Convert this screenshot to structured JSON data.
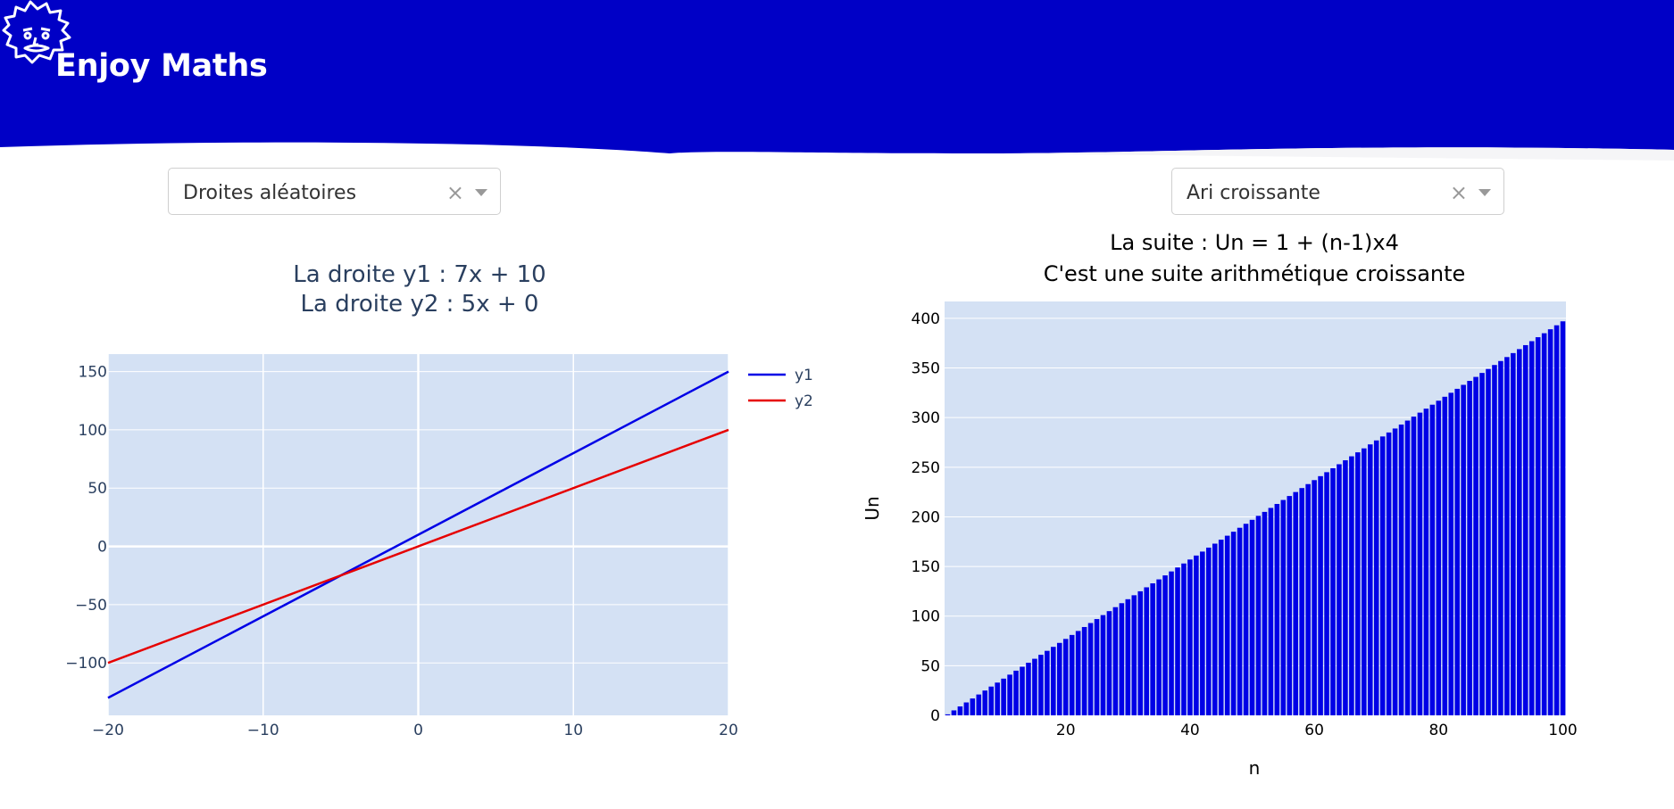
{
  "header": {
    "title": "Enjoy Maths",
    "background": "#0000c6",
    "logo_icon": "einstein-face-icon"
  },
  "left_panel": {
    "dropdown": {
      "value": "Droites aléatoires",
      "clear_icon": "×"
    },
    "chart_data": {
      "type": "line",
      "title_lines": [
        "La droite y1 : 7x + 10",
        "La droite y2 : 5x + 0"
      ],
      "xlabel": "",
      "ylabel": "",
      "xlim": [
        -20,
        20
      ],
      "ylim": [
        -145,
        165
      ],
      "x_ticks": [
        -20,
        -10,
        0,
        10,
        20
      ],
      "y_ticks": [
        -100,
        -50,
        0,
        50,
        100,
        150
      ],
      "tick_labels_x": [
        "−20",
        "−10",
        "0",
        "10",
        "20"
      ],
      "tick_labels_y": [
        "−100",
        "−50",
        "0",
        "50",
        "100",
        "150"
      ],
      "grid": true,
      "legend_position": "right",
      "series": [
        {
          "name": "y1",
          "x": [
            -20,
            20
          ],
          "y": [
            -130,
            150
          ],
          "color": "#0000e6"
        },
        {
          "name": "y2",
          "x": [
            -20,
            20
          ],
          "y": [
            -100,
            100
          ],
          "color": "#e60000"
        }
      ]
    }
  },
  "right_panel": {
    "dropdown": {
      "value": "Ari croissante",
      "clear_icon": "×"
    },
    "chart_data": {
      "type": "bar",
      "title_lines": [
        "La suite : Un = 1 + (n-1)x4",
        "C'est une suite arithmétique croissante"
      ],
      "xlabel": "n",
      "ylabel": "Un",
      "formula": {
        "u1": 1,
        "r": 4,
        "n_start": 1,
        "n_end": 100
      },
      "xlim": [
        0.5,
        100.5
      ],
      "ylim": [
        0,
        417
      ],
      "x_ticks": [
        20,
        40,
        60,
        80,
        100
      ],
      "y_ticks": [
        0,
        50,
        100,
        150,
        200,
        250,
        300,
        350,
        400
      ],
      "grid": true,
      "bar_color": "#0000e6"
    }
  }
}
